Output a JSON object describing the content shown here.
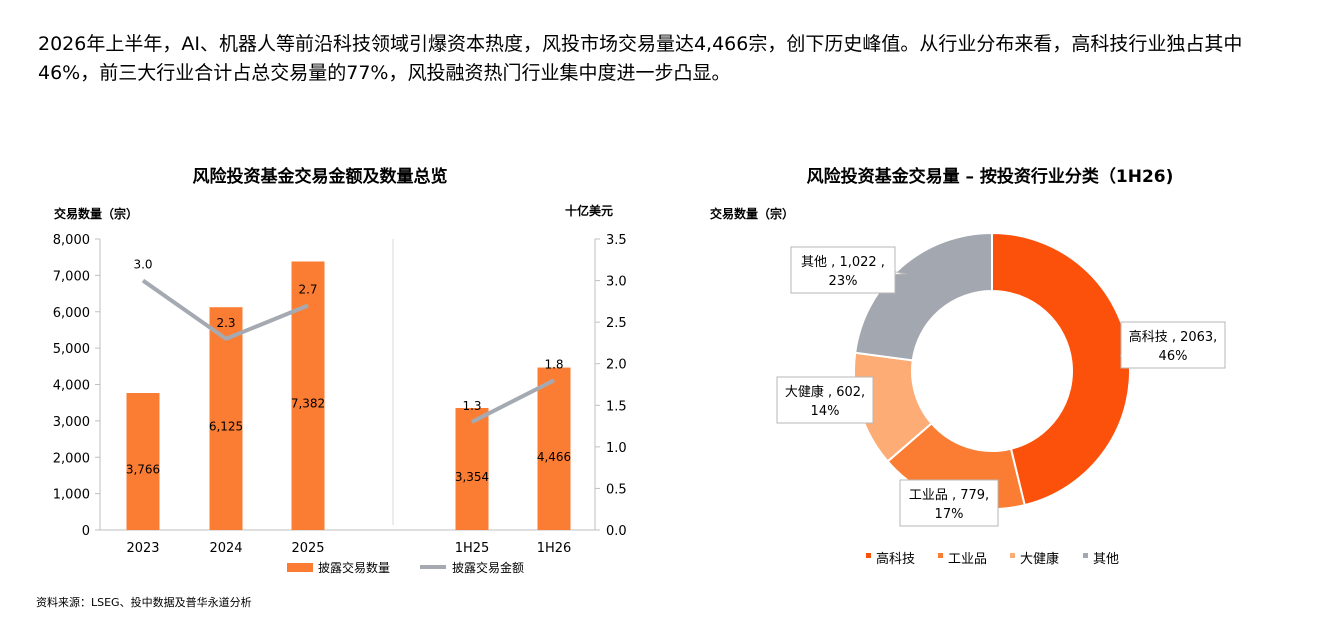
{
  "intro_text": "2026年上半年，AI、机器人等前沿科技领域引爆资本热度，风投市场交易量达4,466宗，创下历史峰值。从行业分布来看，高科技行业独占其中46%，前三大行业合计占总交易量的77%，风投融资热门行业集中度进一步凸显。",
  "source_text": "资料来源：LSEG、投中数据及普华永道分析",
  "colors": {
    "bar": "#fb7d34",
    "line": "#a5aab2",
    "hi_tech": "#fc510a",
    "industrial": "#fb7d34",
    "health": "#fdac76",
    "other": "#a3a7b0"
  },
  "chart_data": [
    {
      "type": "bar",
      "title": "风险投资基金交易金额及数量总览",
      "ylabel_left": "交易数量（宗）",
      "ylabel_right": "十亿美元",
      "categories": [
        "2023",
        "2024",
        "2025",
        "1H25",
        "1H26"
      ],
      "ylim_left": [
        0,
        8000
      ],
      "yticks_left": [
        "0",
        "1,000",
        "2,000",
        "3,000",
        "4,000",
        "5,000",
        "6,000",
        "7,000",
        "8,000"
      ],
      "ylim_right": [
        0,
        3.5
      ],
      "yticks_right": [
        "0.0",
        "0.5",
        "1.0",
        "1.5",
        "2.0",
        "2.5",
        "3.0",
        "3.5"
      ],
      "series": [
        {
          "name": "披露交易数量",
          "kind": "bar",
          "values": [
            3766,
            6125,
            7382,
            3354,
            4466
          ],
          "labels": [
            "3,766",
            "6,125",
            "7,382",
            "3,354",
            "4,466"
          ]
        },
        {
          "name": "披露交易金额",
          "kind": "line",
          "values": [
            3.0,
            2.3,
            2.7,
            1.3,
            1.8
          ],
          "labels": [
            "3.0",
            "2.3",
            "2.7",
            "1.3",
            "1.8"
          ]
        }
      ]
    },
    {
      "type": "pie",
      "title": "风险投资基金交易量 – 按投资行业分类（1H26)",
      "ylabel": "交易数量（宗）",
      "slices": [
        {
          "name": "高科技",
          "value": 2063,
          "label": "高科技 , 2063,",
          "percent": "46%",
          "color": "#fc510a"
        },
        {
          "name": "工业品",
          "value": 779,
          "label": "工业品 , 779,",
          "percent": "17%",
          "color": "#fb7d34"
        },
        {
          "name": "大健康",
          "value": 602,
          "label": "大健康 , 602,",
          "percent": "14%",
          "color": "#fdac76"
        },
        {
          "name": "其他",
          "value": 1022,
          "label": "其他 , 1,022 ,",
          "percent": "23%",
          "color": "#a3a7b0"
        }
      ],
      "legend": [
        "高科技",
        "工业品",
        "大健康",
        "其他"
      ]
    }
  ]
}
